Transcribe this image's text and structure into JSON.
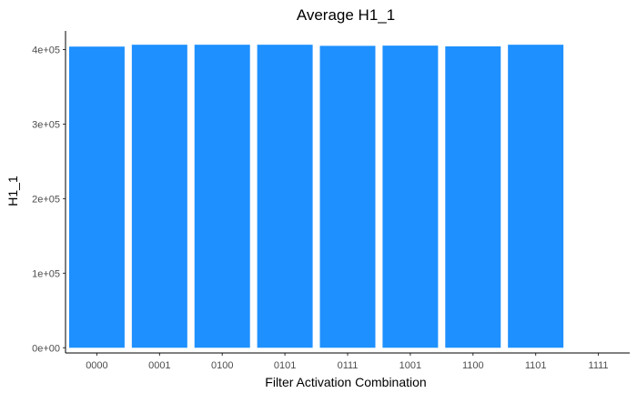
{
  "chart_data": {
    "type": "bar",
    "title": "Average H1_1",
    "xlabel": "Filter Activation Combination",
    "ylabel": "H1_1",
    "categories": [
      "0000",
      "0001",
      "0100",
      "0101",
      "0111",
      "1001",
      "1100",
      "1101",
      "1111"
    ],
    "values": [
      404000,
      406500,
      406500,
      406500,
      405000,
      405300,
      404300,
      406500,
      null
    ],
    "ylim": [
      -7000,
      425000
    ],
    "yticks": [
      0,
      100000,
      200000,
      300000,
      400000
    ],
    "ytick_labels": [
      "0e+00",
      "1e+05",
      "2e+05",
      "3e+05",
      "4e+05"
    ],
    "grid": false,
    "bar_color": "#1E90FF",
    "axis_color": "#000000"
  }
}
